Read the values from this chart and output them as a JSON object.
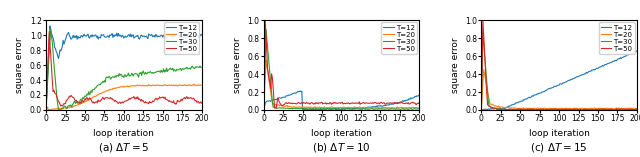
{
  "title_a": "(a) $\\Delta T = 5$",
  "title_b": "(b) $\\Delta T = 10$",
  "title_c": "(c) $\\Delta T = 15$",
  "xlabel": "loop iteration",
  "ylabel": "square error",
  "legend_labels": [
    "T=12",
    "T=20",
    "T=30",
    "T=50"
  ],
  "colors": [
    "#1f77b4",
    "#ff7f0e",
    "#2ca02c",
    "#d62728"
  ],
  "xticks": [
    0,
    25,
    50,
    75,
    100,
    125,
    150,
    175,
    200
  ],
  "subplot_a": {
    "ylim": [
      0.0,
      1.2
    ],
    "yticks": [
      0.0,
      0.2,
      0.4,
      0.6,
      0.8,
      1.0,
      1.2
    ]
  },
  "subplot_b": {
    "ylim": [
      0.0,
      1.0
    ],
    "yticks": [
      0.0,
      0.2,
      0.4,
      0.6,
      0.8,
      1.0
    ]
  },
  "subplot_c": {
    "ylim": [
      0.0,
      1.0
    ],
    "yticks": [
      0.0,
      0.2,
      0.4,
      0.6,
      0.8,
      1.0
    ]
  }
}
